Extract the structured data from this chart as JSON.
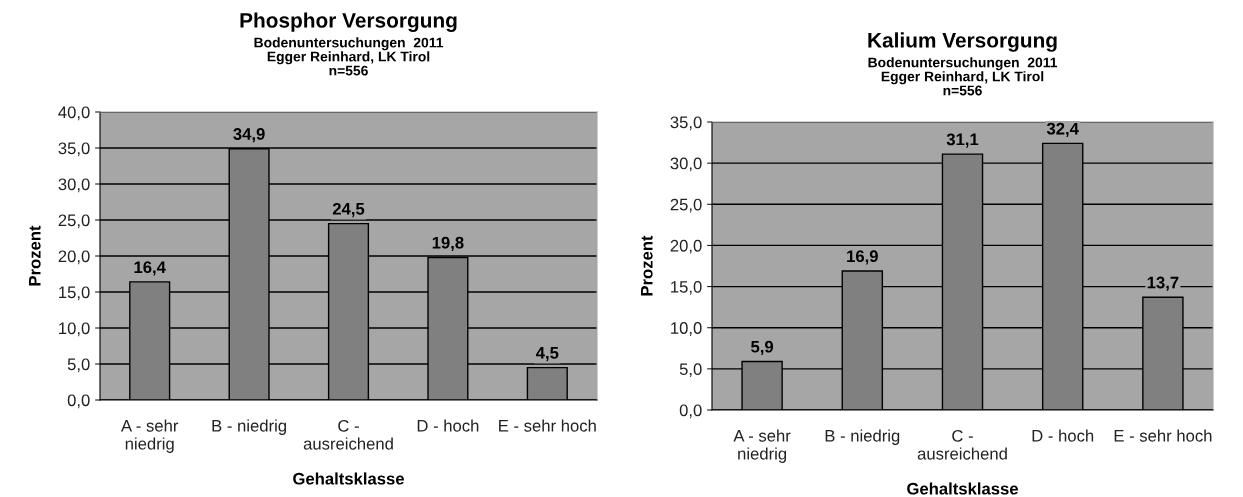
{
  "chart_data": [
    {
      "type": "bar",
      "title": "Phosphor Versorgung",
      "subtitle": "Bodenuntersuchungen  2011\nEgger Reinhard, LK Tirol\nn=556",
      "xlabel": "Gehaltsklasse",
      "ylabel": "Prozent",
      "categories": [
        "A - sehr\nniedrig",
        "B - niedrig",
        "C -\nausreichend",
        "D - hoch",
        "E - sehr hoch"
      ],
      "values": [
        16.4,
        34.9,
        24.5,
        19.8,
        4.5
      ],
      "value_labels": [
        "16,4",
        "34,9",
        "24,5",
        "19,8",
        "4,5"
      ],
      "color": "#808080",
      "ylim": [
        0,
        40
      ],
      "yticks": [
        {
          "value": 0,
          "label": "0,0"
        },
        {
          "value": 5,
          "label": "5,0"
        },
        {
          "value": 10,
          "label": "10,0"
        },
        {
          "value": 15,
          "label": "15,0"
        },
        {
          "value": 20,
          "label": "20,0"
        },
        {
          "value": 25,
          "label": "25,0"
        },
        {
          "value": 30,
          "label": "30,0"
        },
        {
          "value": 35,
          "label": "35,0"
        },
        {
          "value": 40,
          "label": "40,0"
        }
      ],
      "grid": "y"
    },
    {
      "type": "bar",
      "title": "Kalium Versorgung",
      "subtitle": "Bodenuntersuchungen  2011\nEgger Reinhard, LK Tirol\nn=556",
      "xlabel": "Gehaltsklasse",
      "ylabel": "Prozent",
      "categories": [
        "A - sehr\nniedrig",
        "B - niedrig",
        "C -\nausreichend",
        "D - hoch",
        "E - sehr hoch"
      ],
      "values": [
        5.9,
        16.9,
        31.1,
        32.4,
        13.7
      ],
      "value_labels": [
        "5,9",
        "16,9",
        "31,1",
        "32,4",
        "13,7"
      ],
      "color": "#808080",
      "ylim": [
        0,
        35
      ],
      "yticks": [
        {
          "value": 0,
          "label": "0,0"
        },
        {
          "value": 5,
          "label": "5,0"
        },
        {
          "value": 10,
          "label": "10,0"
        },
        {
          "value": 15,
          "label": "15,0"
        },
        {
          "value": 20,
          "label": "20,0"
        },
        {
          "value": 25,
          "label": "25,0"
        },
        {
          "value": 30,
          "label": "30,0"
        },
        {
          "value": 35,
          "label": "35,0"
        }
      ],
      "grid": "y"
    }
  ]
}
